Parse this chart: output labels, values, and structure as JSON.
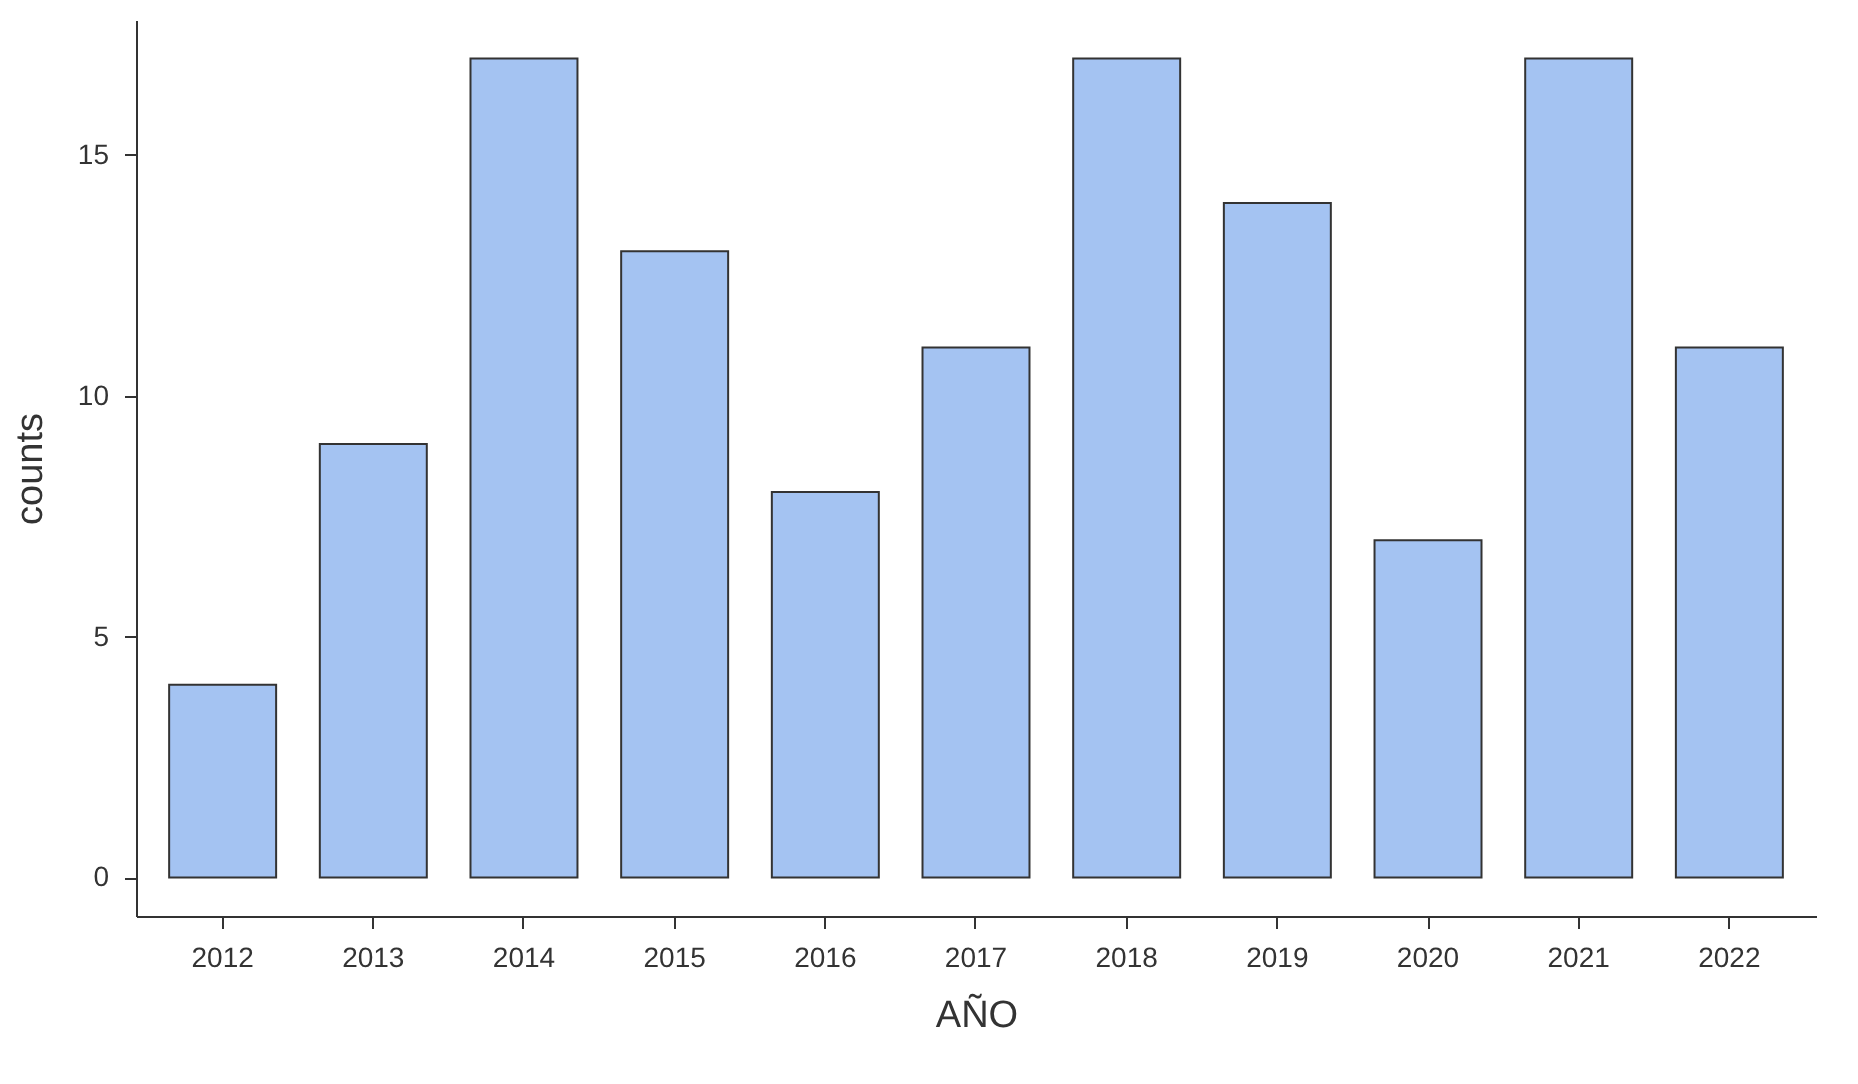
{
  "chart_data": {
    "type": "bar",
    "xlabel": "AÑO",
    "ylabel": "counts",
    "categories": [
      "2012",
      "2013",
      "2014",
      "2015",
      "2016",
      "2017",
      "2018",
      "2019",
      "2020",
      "2021",
      "2022"
    ],
    "values": [
      4,
      9,
      17,
      13,
      8,
      11,
      17,
      14,
      7,
      17,
      11
    ],
    "color": "#a4c3f2",
    "ylim": [
      -0.8,
      17.8
    ],
    "yticks": [
      0,
      5,
      10,
      15
    ],
    "grid": false
  }
}
